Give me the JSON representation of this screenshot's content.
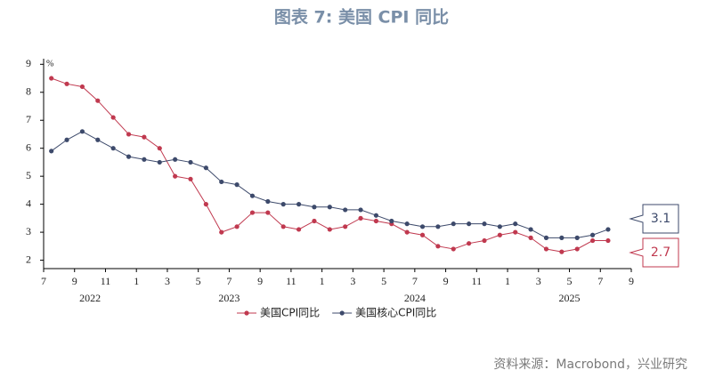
{
  "chart_data": {
    "type": "line",
    "title": "图表 7:  美国 CPI 同比",
    "unit_label": "%",
    "source": "资料来源：Macrobond，兴业研究",
    "x": [
      "2022-07",
      "2022-08",
      "2022-09",
      "2022-10",
      "2022-11",
      "2022-12",
      "2023-01",
      "2023-02",
      "2023-03",
      "2023-04",
      "2023-05",
      "2023-06",
      "2023-07",
      "2023-08",
      "2023-09",
      "2023-10",
      "2023-11",
      "2023-12",
      "2024-01",
      "2024-02",
      "2024-03",
      "2024-04",
      "2024-05",
      "2024-06",
      "2024-07",
      "2024-08",
      "2024-09",
      "2024-10",
      "2024-11",
      "2024-12",
      "2025-01",
      "2025-02",
      "2025-03",
      "2025-04",
      "2025-05",
      "2025-06",
      "2025-07"
    ],
    "xlim": [
      "2022-07",
      "2025-09"
    ],
    "xticks": [
      {
        "value": "2022-07",
        "label": "7"
      },
      {
        "value": "2022-09",
        "label": "9"
      },
      {
        "value": "2022-11",
        "label": "11"
      },
      {
        "value": "2023-01",
        "label": "1"
      },
      {
        "value": "2023-03",
        "label": "3"
      },
      {
        "value": "2023-05",
        "label": "5"
      },
      {
        "value": "2023-07",
        "label": "7"
      },
      {
        "value": "2023-09",
        "label": "9"
      },
      {
        "value": "2023-11",
        "label": "11"
      },
      {
        "value": "2024-01",
        "label": "1"
      },
      {
        "value": "2024-03",
        "label": "3"
      },
      {
        "value": "2024-05",
        "label": "5"
      },
      {
        "value": "2024-07",
        "label": "7"
      },
      {
        "value": "2024-09",
        "label": "9"
      },
      {
        "value": "2024-11",
        "label": "11"
      },
      {
        "value": "2025-01",
        "label": "1"
      },
      {
        "value": "2025-03",
        "label": "3"
      },
      {
        "value": "2025-05",
        "label": "5"
      },
      {
        "value": "2025-07",
        "label": "7"
      },
      {
        "value": "2025-09",
        "label": "9"
      }
    ],
    "year_labels": [
      "2022",
      "2023",
      "2024",
      "2025"
    ],
    "ylim": [
      1.7,
      9.2
    ],
    "yticks": [
      2,
      3,
      4,
      5,
      6,
      7,
      8,
      9
    ],
    "legend": "bottom",
    "series": [
      {
        "name": "美国CPI同比",
        "color": "#c0394f",
        "last_label": "2.7",
        "values": [
          8.5,
          8.3,
          8.2,
          7.7,
          7.1,
          6.5,
          6.4,
          6.0,
          5.0,
          4.9,
          4.0,
          3.0,
          3.2,
          3.7,
          3.7,
          3.2,
          3.1,
          3.4,
          3.1,
          3.2,
          3.5,
          3.4,
          3.3,
          3.0,
          2.9,
          2.5,
          2.4,
          2.6,
          2.7,
          2.9,
          3.0,
          2.8,
          2.4,
          2.3,
          2.4,
          2.7,
          2.7
        ]
      },
      {
        "name": "美国核心CPI同比",
        "color": "#3d4a6b",
        "last_label": "3.1",
        "values": [
          5.9,
          6.3,
          6.6,
          6.3,
          6.0,
          5.7,
          5.6,
          5.5,
          5.6,
          5.5,
          5.3,
          4.8,
          4.7,
          4.3,
          4.1,
          4.0,
          4.0,
          3.9,
          3.9,
          3.8,
          3.8,
          3.6,
          3.4,
          3.3,
          3.2,
          3.2,
          3.3,
          3.3,
          3.3,
          3.2,
          3.3,
          3.1,
          2.8,
          2.8,
          2.8,
          2.9,
          3.1
        ]
      }
    ]
  }
}
